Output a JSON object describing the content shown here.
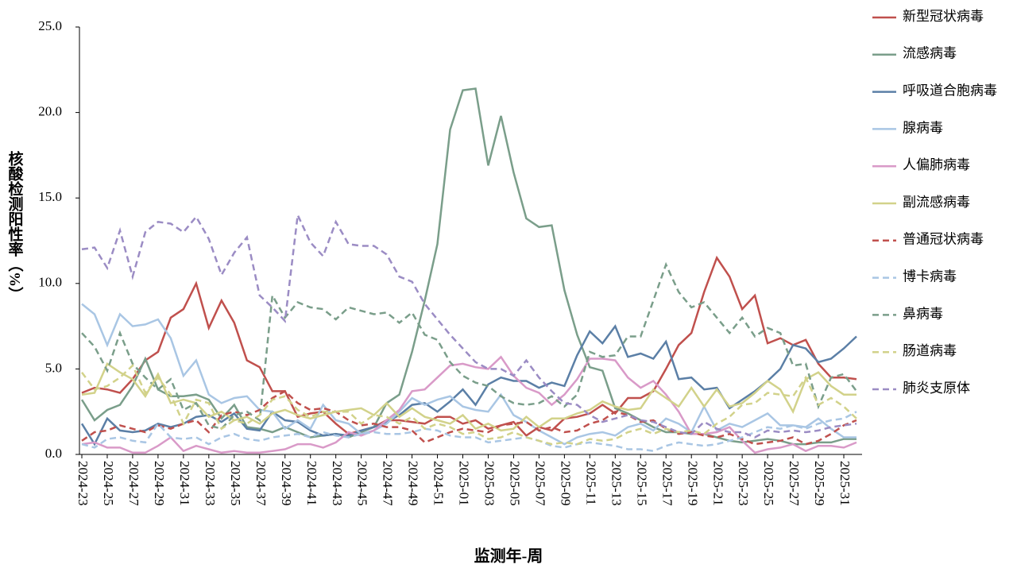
{
  "chart_data": {
    "type": "line",
    "x_label": "监测年-周",
    "y_label": "核酸检测阳性率（%）",
    "categories": [
      "2024-23",
      null,
      "2024-25",
      null,
      "2024-27",
      null,
      "2024-29",
      null,
      "2024-31",
      null,
      "2024-33",
      null,
      "2024-35",
      null,
      "2024-37",
      null,
      "2024-39",
      null,
      "2024-41",
      null,
      "2024-43",
      null,
      "2024-45",
      null,
      "2024-47",
      null,
      "2024-49",
      null,
      "2024-51",
      null,
      "2025-01",
      null,
      "2025-03",
      null,
      "2025-05",
      null,
      "2025-07",
      null,
      "2025-09",
      null,
      "2025-11",
      null,
      "2025-13",
      null,
      "2025-15",
      null,
      "2025-17",
      null,
      "2025-19",
      null,
      "2025-21",
      null,
      "2025-23",
      null,
      "2025-25",
      null,
      "2025-27",
      null,
      "2025-29",
      null,
      "2025-31",
      null
    ],
    "ylim": [
      0,
      25
    ],
    "yticks": [
      {
        "value": 0,
        "label": "0.0"
      },
      {
        "value": 5,
        "label": "5.0"
      },
      {
        "value": 10,
        "label": "10.0"
      },
      {
        "value": 15,
        "label": "15.0"
      },
      {
        "value": 20,
        "label": "20.0"
      },
      {
        "value": 25,
        "label": "25.0"
      }
    ],
    "grid": false,
    "legend": "right",
    "series": [
      {
        "name": "新型冠状病毒",
        "color": "#c0504d",
        "dashed": false,
        "values": [
          3.6,
          3.9,
          3.8,
          3.6,
          4.4,
          5.5,
          6.0,
          8.0,
          8.5,
          10.0,
          7.4,
          9.0,
          7.7,
          5.5,
          5.1,
          3.7,
          3.7,
          2.2,
          2.4,
          2.5,
          1.8,
          1.2,
          1.4,
          1.6,
          2.0,
          2.0,
          1.9,
          1.8,
          2.2,
          2.2,
          1.8,
          2.0,
          1.5,
          1.7,
          1.9,
          1.1,
          1.6,
          1.4,
          2.1,
          2.2,
          2.4,
          2.9,
          2.4,
          3.3,
          3.3,
          3.7,
          5.0,
          6.4,
          7.1,
          9.5,
          11.5,
          10.4,
          8.5,
          9.3,
          6.5,
          6.8,
          6.4,
          6.7,
          5.3,
          4.5,
          4.5,
          4.4
        ]
      },
      {
        "name": "流感病毒",
        "color": "#7a9e8a",
        "dashed": false,
        "values": [
          3.2,
          2.0,
          2.6,
          2.9,
          4.0,
          5.6,
          3.8,
          3.4,
          3.4,
          3.5,
          3.2,
          2.1,
          2.9,
          1.6,
          1.5,
          1.3,
          1.6,
          1.3,
          1.0,
          1.1,
          1.2,
          1.0,
          1.3,
          1.6,
          3.0,
          3.5,
          6.0,
          9.0,
          12.3,
          19.0,
          21.3,
          21.4,
          16.9,
          19.8,
          16.5,
          13.8,
          13.3,
          13.4,
          9.6,
          7.0,
          5.1,
          4.9,
          2.7,
          2.4,
          2.0,
          1.6,
          1.3,
          1.3,
          1.2,
          1.2,
          1.0,
          0.8,
          0.7,
          0.8,
          0.9,
          0.8,
          0.6,
          0.6,
          0.7,
          0.7,
          0.9,
          0.9
        ]
      },
      {
        "name": "呼吸道合胞病毒",
        "color": "#5b7fa6",
        "dashed": false,
        "values": [
          1.8,
          0.6,
          2.1,
          1.4,
          1.3,
          1.4,
          1.8,
          1.6,
          1.8,
          2.2,
          2.3,
          1.9,
          2.4,
          1.5,
          1.4,
          2.5,
          2.0,
          1.9,
          1.4,
          1.1,
          1.2,
          1.1,
          1.4,
          1.6,
          1.9,
          2.3,
          2.9,
          3.0,
          2.5,
          3.1,
          3.8,
          2.9,
          4.1,
          4.5,
          4.3,
          4.3,
          3.9,
          4.2,
          4.0,
          5.8,
          7.2,
          6.5,
          7.5,
          5.7,
          5.9,
          5.6,
          6.6,
          4.4,
          4.5,
          3.8,
          3.9,
          2.7,
          3.2,
          3.7,
          4.3,
          5.0,
          6.4,
          6.2,
          5.4,
          5.6,
          6.2,
          6.9
        ]
      },
      {
        "name": "腺病毒",
        "color": "#a9c6e4",
        "dashed": false,
        "values": [
          8.8,
          8.2,
          6.4,
          8.2,
          7.5,
          7.6,
          7.9,
          6.8,
          4.6,
          5.5,
          3.5,
          3.0,
          3.3,
          3.4,
          2.6,
          2.5,
          1.5,
          2.0,
          1.5,
          2.9,
          2.0,
          1.8,
          1.2,
          1.4,
          1.8,
          2.5,
          3.3,
          2.9,
          3.2,
          3.4,
          2.8,
          2.6,
          2.5,
          3.5,
          2.3,
          1.9,
          1.4,
          1.0,
          0.6,
          1.0,
          1.2,
          1.3,
          1.1,
          1.6,
          1.8,
          1.4,
          2.1,
          1.8,
          1.3,
          2.8,
          1.4,
          1.8,
          1.6,
          2.0,
          2.4,
          1.7,
          1.7,
          1.6,
          2.1,
          1.5,
          1.0,
          1.0
        ]
      },
      {
        "name": "人偏肺病毒",
        "color": "#d99ac8",
        "dashed": false,
        "values": [
          0.6,
          0.7,
          0.4,
          0.4,
          0.1,
          0.1,
          0.5,
          1.0,
          0.2,
          0.5,
          0.3,
          0.1,
          0.2,
          0.1,
          0.1,
          0.2,
          0.3,
          0.6,
          0.6,
          0.4,
          0.7,
          1.3,
          1.1,
          1.4,
          2.0,
          2.6,
          3.7,
          3.8,
          4.5,
          5.2,
          5.3,
          5.1,
          5.0,
          5.7,
          4.6,
          3.9,
          3.6,
          2.9,
          3.5,
          4.4,
          5.6,
          5.6,
          5.5,
          4.5,
          3.9,
          4.3,
          3.5,
          2.5,
          1.2,
          1.2,
          1.3,
          1.6,
          0.8,
          0.1,
          0.3,
          0.4,
          0.6,
          0.2,
          0.5,
          0.5,
          0.4,
          0.7
        ]
      },
      {
        "name": "副流感病毒",
        "color": "#d2d28a",
        "dashed": false,
        "values": [
          3.5,
          3.6,
          5.3,
          4.8,
          4.4,
          3.4,
          4.7,
          3.0,
          3.2,
          3.0,
          2.2,
          2.5,
          2.0,
          2.2,
          1.8,
          2.4,
          2.6,
          2.3,
          2.1,
          2.3,
          2.5,
          2.6,
          2.7,
          2.3,
          3.0,
          2.2,
          2.7,
          2.2,
          2.0,
          1.8,
          2.3,
          1.5,
          1.8,
          1.4,
          1.5,
          2.2,
          1.6,
          2.1,
          2.1,
          2.4,
          2.6,
          3.1,
          2.8,
          2.6,
          2.7,
          3.8,
          3.3,
          2.8,
          3.9,
          2.8,
          3.8,
          2.8,
          3.0,
          3.6,
          4.3,
          3.8,
          2.5,
          4.4,
          4.8,
          4.0,
          3.5,
          3.5
        ]
      },
      {
        "name": "普通冠状病毒",
        "color": "#c0504d",
        "dashed": true,
        "values": [
          0.8,
          1.3,
          1.4,
          1.7,
          1.5,
          1.3,
          1.7,
          1.5,
          1.8,
          2.0,
          1.3,
          2.3,
          2.5,
          2.3,
          2.6,
          3.3,
          3.7,
          3.0,
          2.6,
          2.7,
          2.5,
          2.0,
          1.7,
          1.8,
          1.6,
          1.6,
          1.4,
          0.7,
          1.0,
          1.3,
          1.5,
          1.4,
          1.3,
          1.7,
          1.8,
          1.9,
          1.4,
          1.6,
          1.3,
          1.4,
          1.8,
          2.0,
          2.5,
          2.3,
          1.9,
          2.0,
          1.5,
          1.2,
          1.3,
          1.1,
          1.0,
          1.2,
          0.9,
          0.6,
          0.7,
          0.8,
          1.0,
          0.6,
          0.8,
          1.2,
          1.7,
          2.0
        ]
      },
      {
        "name": "博卡病毒",
        "color": "#a9c6e4",
        "dashed": true,
        "values": [
          0.6,
          0.4,
          0.9,
          1.0,
          0.8,
          0.7,
          1.8,
          1.0,
          0.9,
          1.0,
          0.6,
          1.0,
          1.2,
          0.9,
          0.8,
          1.0,
          1.1,
          1.2,
          1.0,
          1.3,
          1.1,
          1.0,
          1.2,
          1.3,
          1.2,
          1.2,
          1.3,
          1.5,
          1.4,
          1.1,
          1.0,
          1.0,
          0.7,
          0.8,
          0.9,
          1.0,
          0.8,
          0.5,
          0.4,
          0.6,
          0.7,
          0.6,
          0.5,
          0.3,
          0.3,
          0.2,
          0.5,
          0.7,
          0.6,
          0.5,
          0.6,
          0.8,
          1.0,
          1.3,
          1.6,
          1.5,
          1.7,
          1.5,
          1.8,
          2.0,
          2.1,
          2.5
        ]
      },
      {
        "name": "鼻病毒",
        "color": "#7a9e8a",
        "dashed": true,
        "values": [
          7.1,
          6.3,
          4.9,
          7.1,
          5.3,
          4.5,
          3.8,
          4.4,
          2.6,
          3.0,
          1.7,
          1.5,
          2.3,
          2.5,
          2.0,
          9.3,
          8.0,
          8.9,
          8.6,
          8.5,
          7.9,
          8.6,
          8.4,
          8.2,
          8.3,
          7.7,
          8.3,
          7.0,
          6.7,
          5.4,
          4.6,
          4.2,
          4.0,
          3.4,
          3.0,
          2.9,
          3.0,
          3.4,
          2.8,
          3.5,
          6.0,
          5.7,
          5.8,
          6.9,
          6.9,
          9.0,
          11.1,
          9.5,
          8.6,
          8.9,
          8.0,
          7.1,
          8.0,
          6.9,
          7.4,
          7.1,
          5.2,
          5.3,
          2.8,
          4.5,
          4.7,
          3.7
        ]
      },
      {
        "name": "肠道病毒",
        "color": "#d2d28a",
        "dashed": true,
        "values": [
          4.8,
          3.8,
          4.0,
          4.5,
          5.2,
          3.6,
          4.5,
          3.5,
          1.8,
          3.2,
          3.0,
          1.5,
          2.0,
          1.8,
          2.3,
          3.2,
          3.4,
          2.6,
          2.2,
          2.5,
          2.5,
          2.5,
          1.8,
          2.3,
          2.2,
          1.8,
          2.2,
          1.5,
          1.8,
          1.6,
          1.2,
          1.3,
          0.9,
          1.0,
          1.3,
          1.0,
          0.8,
          0.6,
          0.7,
          0.6,
          0.9,
          0.8,
          0.9,
          1.3,
          1.5,
          1.2,
          1.5,
          1.3,
          1.4,
          1.2,
          1.8,
          2.2,
          2.9,
          3.0,
          3.6,
          3.5,
          3.4,
          4.5,
          2.9,
          3.3,
          2.8,
          2.1
        ]
      },
      {
        "name": "肺炎支原体",
        "color": "#9b8cc4",
        "dashed": true,
        "values": [
          12.0,
          12.1,
          10.9,
          13.1,
          10.4,
          13.0,
          13.6,
          13.5,
          13.0,
          13.9,
          12.6,
          10.5,
          11.8,
          12.7,
          9.3,
          8.6,
          7.8,
          14.0,
          12.4,
          11.6,
          13.6,
          12.3,
          12.2,
          12.2,
          11.7,
          10.4,
          10.1,
          8.8,
          7.9,
          7.0,
          6.2,
          5.4,
          5.0,
          5.0,
          4.6,
          5.5,
          4.5,
          3.7,
          3.0,
          2.9,
          2.3,
          1.9,
          2.1,
          2.3,
          2.0,
          1.9,
          1.6,
          1.3,
          1.2,
          1.9,
          1.5,
          1.3,
          1.3,
          1.0,
          1.4,
          1.3,
          1.4,
          1.3,
          1.4,
          1.6,
          1.7,
          1.8
        ]
      }
    ]
  }
}
